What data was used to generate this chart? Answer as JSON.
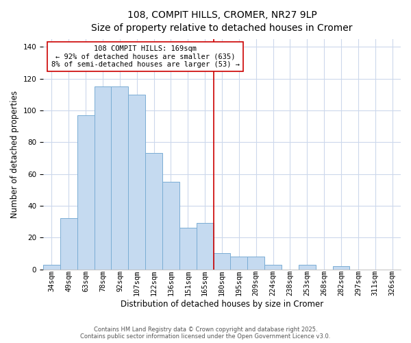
{
  "title": "108, COMPIT HILLS, CROMER, NR27 9LP",
  "subtitle": "Size of property relative to detached houses in Cromer",
  "xlabel": "Distribution of detached houses by size in Cromer",
  "ylabel": "Number of detached properties",
  "categories": [
    "34sqm",
    "49sqm",
    "63sqm",
    "78sqm",
    "92sqm",
    "107sqm",
    "122sqm",
    "136sqm",
    "151sqm",
    "165sqm",
    "180sqm",
    "195sqm",
    "209sqm",
    "224sqm",
    "238sqm",
    "253sqm",
    "268sqm",
    "282sqm",
    "297sqm",
    "311sqm",
    "326sqm"
  ],
  "values": [
    3,
    32,
    97,
    115,
    115,
    110,
    73,
    55,
    26,
    29,
    10,
    8,
    8,
    3,
    0,
    3,
    0,
    2,
    0,
    0,
    0
  ],
  "bar_color": "#c5daf0",
  "bar_edge_color": "#7aadd4",
  "vline_x_index": 9.5,
  "vline_color": "#cc0000",
  "annotation_text": "108 COMPIT HILLS: 169sqm\n← 92% of detached houses are smaller (635)\n8% of semi-detached houses are larger (53) →",
  "annotation_box_color": "#ffffff",
  "annotation_box_edge": "#cc0000",
  "ylim": [
    0,
    145
  ],
  "title_fontsize": 10,
  "xlabel_fontsize": 8.5,
  "ylabel_fontsize": 8.5,
  "tick_fontsize": 7.5,
  "annot_fontsize": 7.5,
  "footnote1": "Contains HM Land Registry data © Crown copyright and database right 2025.",
  "footnote2": "Contains public sector information licensed under the Open Government Licence v3.0.",
  "background_color": "#ffffff",
  "grid_color": "#ccd8ec"
}
